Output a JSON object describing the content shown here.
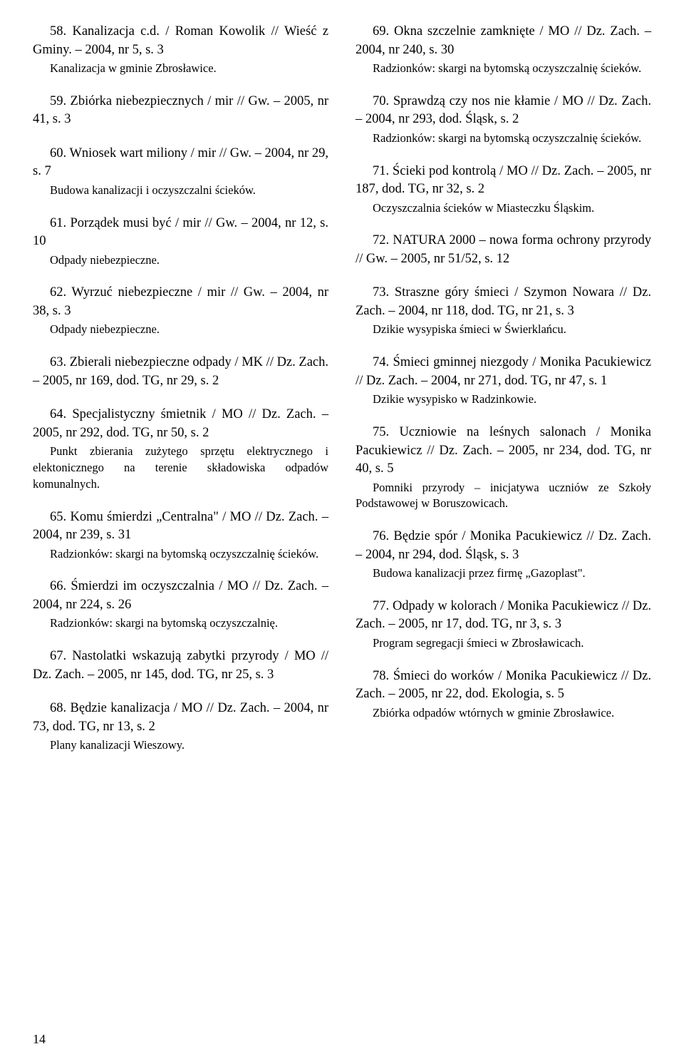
{
  "page_number": "14",
  "left_column": [
    {
      "title": "58. Kanalizacja c.d. / Roman Kowolik // Wieść z Gminy. – 2004, nr 5, s. 3",
      "note": "Kanalizacja w gminie Zbrosławice."
    },
    {
      "title": "59. Zbiórka niebezpiecznych / mir // Gw. – 2005, nr 41, s. 3"
    },
    {
      "title": "60. Wniosek wart miliony / mir // Gw. – 2004, nr 29, s. 7",
      "note": "Budowa kanalizacji i oczyszczalni ścieków."
    },
    {
      "title": "61. Porządek musi być / mir // Gw. – 2004, nr 12, s. 10",
      "note": "Odpady niebezpieczne."
    },
    {
      "title": "62. Wyrzuć niebezpieczne / mir // Gw. – 2004, nr 38, s. 3",
      "note": "Odpady niebezpieczne."
    },
    {
      "title": "63. Zbierali niebezpieczne odpady / MK // Dz. Zach. – 2005, nr 169, dod. TG, nr 29, s. 2"
    },
    {
      "title": "64. Specjalistyczny śmietnik / MO // Dz. Zach. – 2005, nr 292, dod. TG, nr 50, s. 2",
      "note": "Punkt zbierania zużytego sprzętu elektrycznego i elektonicznego na terenie składowiska odpadów komunalnych."
    },
    {
      "title": "65. Komu śmierdzi „Centralna\" / MO // Dz. Zach. – 2004, nr 239, s. 31",
      "note": "Radzionków: skargi na bytomską oczyszczalnię ścieków."
    },
    {
      "title": "66. Śmierdzi im oczyszczalnia / MO // Dz. Zach. – 2004, nr 224, s. 26",
      "note": "Radzionków: skargi na bytomską oczyszczalnię."
    },
    {
      "title": "67. Nastolatki wskazują zabytki przyrody / MO // Dz. Zach. – 2005, nr 145, dod. TG, nr 25, s. 3"
    },
    {
      "title": "68. Będzie kanalizacja / MO // Dz. Zach. – 2004, nr 73, dod. TG, nr 13, s. 2",
      "note": "Plany kanalizacji Wieszowy."
    }
  ],
  "right_column": [
    {
      "title": "69. Okna szczelnie zamknięte / MO // Dz. Zach. – 2004, nr 240, s. 30",
      "note": "Radzionków: skargi na bytomską oczyszczalnię ścieków."
    },
    {
      "title": "70. Sprawdzą czy nos nie kłamie / MO // Dz. Zach. – 2004, nr 293, dod. Śląsk, s. 2",
      "note": "Radzionków: skargi na bytomską oczyszczalnię ścieków."
    },
    {
      "title": "71. Ścieki pod kontrolą / MO // Dz. Zach. – 2005, nr 187, dod. TG, nr 32, s. 2",
      "note": "Oczyszczalnia ścieków w Miasteczku Śląskim."
    },
    {
      "title": "72. NATURA 2000 – nowa forma ochrony przyrody // Gw. – 2005, nr 51/52, s. 12"
    },
    {
      "title": "73. Straszne góry śmieci / Szymon Nowara // Dz. Zach. – 2004, nr 118, dod. TG, nr 21, s. 3",
      "note": "Dzikie wysypiska śmieci w Świerklańcu."
    },
    {
      "title": "74. Śmieci gminnej niezgody / Monika Pacukiewicz // Dz. Zach. – 2004, nr 271, dod. TG, nr 47, s. 1",
      "note": "Dzikie wysypisko w Radzinkowie."
    },
    {
      "title": "75. Uczniowie na leśnych salonach / Monika Pacukiewicz // Dz. Zach. – 2005, nr 234, dod. TG, nr 40, s. 5",
      "note": "Pomniki przyrody – inicjatywa uczniów ze Szkoły Podstawowej w Boruszowicach."
    },
    {
      "title": "76. Będzie spór / Monika Pacukiewicz // Dz. Zach. – 2004, nr 294, dod. Śląsk, s. 3",
      "note": "Budowa kanalizacji przez firmę „Gazoplast\"."
    },
    {
      "title": "77. Odpady w kolorach / Monika Pacukiewicz // Dz. Zach. – 2005, nr 17, dod. TG, nr 3, s. 3",
      "note": "Program segregacji śmieci w Zbrosławicach."
    },
    {
      "title": "78. Śmieci do worków / Monika Pacukiewicz // Dz. Zach. – 2005, nr 22, dod. Ekologia, s. 5",
      "note": "Zbiórka odpadów wtórnych w gminie Zbrosławice."
    }
  ]
}
